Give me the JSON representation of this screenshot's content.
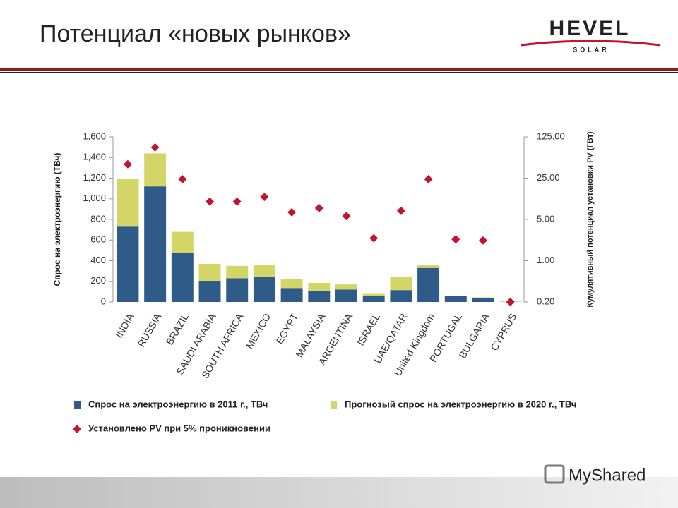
{
  "slide": {
    "title": "Потенциал «новых рынков»",
    "logo": {
      "name": "HEVEL",
      "tagline": "SOLAR"
    },
    "watermark": "MyShared"
  },
  "chart_data": {
    "type": "bar",
    "stacked": true,
    "ylabel": "Спрос на электроэнергию (ТВч)",
    "y2label": "Кумулятивный потенциал установки PV (ГВт)",
    "categories": [
      "INDIA",
      "RUSSIA",
      "BRAZIL",
      "SAUDI ARABIA",
      "SOUTH AFRICA",
      "MEXICO",
      "EGYPT",
      "MALAYSIA",
      "ARGENTINA",
      "ISRAEL",
      "UAE/QATAR",
      "United Kingdom",
      "PORTUGAL",
      "BULGARIA",
      "CYPRUS"
    ],
    "series": [
      {
        "name": "Спрос на электроэнергию в 2011 г., ТВч",
        "color": "#2f5b89",
        "values": [
          730,
          1120,
          480,
          205,
          230,
          240,
          135,
          110,
          120,
          60,
          115,
          330,
          55,
          40,
          2
        ]
      },
      {
        "name": "Прогнозый спрос на электроэнергию в 2020 г., ТВч",
        "color": "#d3d566",
        "values": [
          460,
          320,
          200,
          165,
          120,
          115,
          90,
          75,
          50,
          25,
          130,
          25,
          5,
          5,
          1
        ]
      },
      {
        "name": "Установлено PV при 5% проникновении",
        "color": "#c4122f",
        "type": "scatter",
        "axis": "y2",
        "values": [
          43,
          83,
          24,
          10,
          10,
          12,
          6.6,
          7.8,
          5.7,
          2.4,
          7,
          24,
          2.3,
          2.2,
          0.2
        ]
      }
    ],
    "ylim": [
      0,
      1600
    ],
    "yticks": [
      0,
      200,
      400,
      600,
      800,
      {
        "value": 1000,
        "label": "1,000"
      },
      {
        "value": 1200,
        "label": "1,200"
      },
      {
        "value": 1400,
        "label": "1,400"
      },
      {
        "value": 1600,
        "label": "1,600"
      }
    ],
    "y2lim": [
      0.2,
      125
    ],
    "y2scale": "log",
    "y2ticks": [
      {
        "value": 0.2,
        "label": "0.20"
      },
      {
        "value": 1,
        "label": "1.00"
      },
      {
        "value": 5,
        "label": "5.00"
      },
      {
        "value": 25,
        "label": "25.00"
      },
      {
        "value": 125,
        "label": "125.00"
      }
    ],
    "grid": false
  }
}
